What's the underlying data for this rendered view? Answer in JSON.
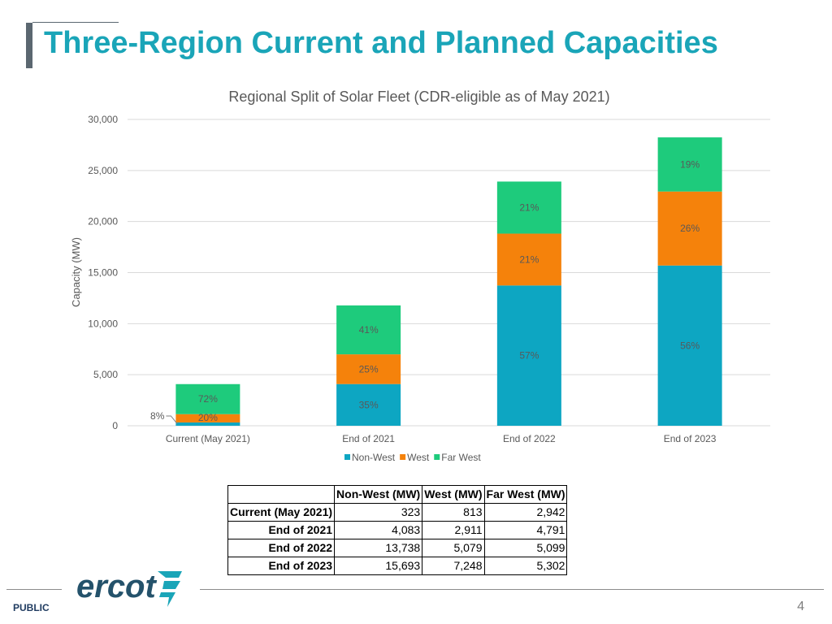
{
  "slide": {
    "title": "Three-Region Current and Planned Capacities",
    "classification": "PUBLIC",
    "page_number": "4",
    "logo_text": "ercot"
  },
  "colors": {
    "title": "#1aa5b8",
    "non_west": "#0da6c2",
    "west": "#f5820b",
    "far_west": "#1ecb7c"
  },
  "chart_data": {
    "type": "bar",
    "stacked": true,
    "title": "Regional Split of Solar Fleet (CDR-eligible as of May 2021)",
    "ylabel": "Capacity (MW)",
    "xlabel": "",
    "ylim": [
      0,
      30000
    ],
    "yticks": [
      0,
      5000,
      10000,
      15000,
      20000,
      25000,
      30000
    ],
    "ytick_labels": [
      "0",
      "5,000",
      "10,000",
      "15,000",
      "20,000",
      "25,000",
      "30,000"
    ],
    "grid": true,
    "legend_position": "bottom",
    "categories": [
      "Current (May 2021)",
      "End of 2021",
      "End of 2022",
      "End of 2023"
    ],
    "series": [
      {
        "name": "Non-West",
        "color": "#0da6c2",
        "values": [
          323,
          4083,
          13738,
          15693
        ],
        "labels": [
          "8%",
          "35%",
          "57%",
          "56%"
        ]
      },
      {
        "name": "West",
        "color": "#f5820b",
        "values": [
          813,
          2911,
          5079,
          7248
        ],
        "labels": [
          "20%",
          "25%",
          "21%",
          "26%"
        ]
      },
      {
        "name": "Far West",
        "color": "#1ecb7c",
        "values": [
          2942,
          4791,
          5099,
          5302
        ],
        "labels": [
          "72%",
          "41%",
          "21%",
          "19%"
        ]
      }
    ]
  },
  "table": {
    "headers": [
      "",
      "Non-West (MW)",
      "West (MW)",
      "Far West (MW)"
    ],
    "rows": [
      {
        "label": "Current (May 2021)",
        "non_west": "323",
        "west": "813",
        "far_west": "2,942"
      },
      {
        "label": "End of 2021",
        "non_west": "4,083",
        "west": "2,911",
        "far_west": "4,791"
      },
      {
        "label": "End of 2022",
        "non_west": "13,738",
        "west": "5,079",
        "far_west": "5,099"
      },
      {
        "label": "End of 2023",
        "non_west": "15,693",
        "west": "7,248",
        "far_west": "5,302"
      }
    ]
  }
}
